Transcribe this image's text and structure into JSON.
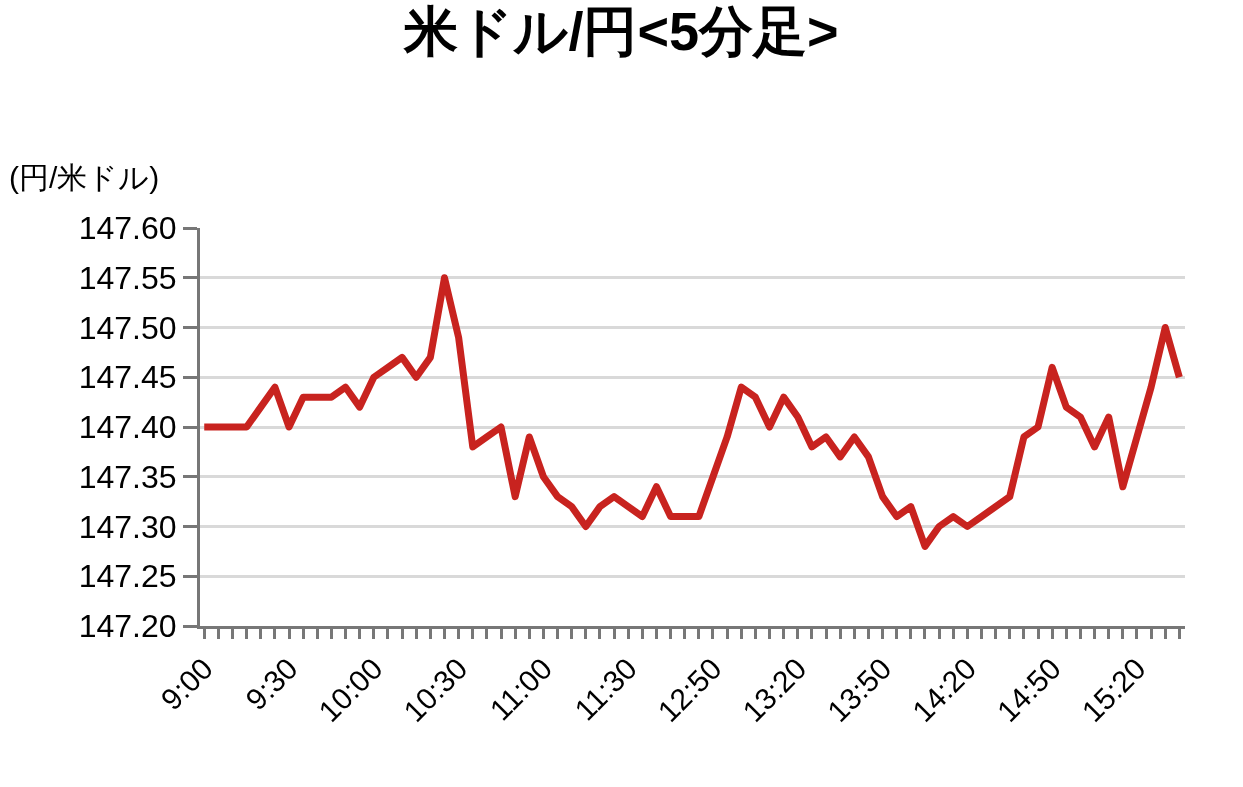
{
  "chart_data": {
    "type": "line",
    "title": "米ドル/円<5分足>",
    "ylabel": "(円/米ドル)",
    "categories": [
      "9:00",
      null,
      null,
      null,
      null,
      null,
      "9:30",
      null,
      null,
      null,
      null,
      null,
      "10:00",
      null,
      null,
      null,
      null,
      null,
      "10:30",
      null,
      null,
      null,
      null,
      null,
      "11:00",
      null,
      null,
      null,
      null,
      null,
      "11:30",
      null,
      null,
      null,
      null,
      null,
      "12:50",
      null,
      null,
      null,
      null,
      null,
      "13:20",
      null,
      null,
      null,
      null,
      null,
      "13:50",
      null,
      null,
      null,
      null,
      null,
      "14:20",
      null,
      null,
      null,
      null,
      null,
      "14:50",
      null,
      null,
      null,
      null,
      null,
      "15:20",
      null,
      null,
      null
    ],
    "series": [
      {
        "color": "#c8231f",
        "values": [
          147.4,
          147.4,
          147.4,
          147.4,
          147.42,
          147.44,
          147.4,
          147.43,
          147.43,
          147.43,
          147.44,
          147.42,
          147.45,
          147.46,
          147.47,
          147.45,
          147.47,
          147.55,
          147.49,
          147.38,
          147.39,
          147.4,
          147.33,
          147.39,
          147.35,
          147.33,
          147.32,
          147.3,
          147.32,
          147.33,
          147.32,
          147.31,
          147.34,
          147.31,
          147.31,
          147.31,
          147.35,
          147.39,
          147.44,
          147.43,
          147.4,
          147.43,
          147.41,
          147.38,
          147.39,
          147.37,
          147.39,
          147.37,
          147.33,
          147.31,
          147.32,
          147.28,
          147.3,
          147.31,
          147.3,
          147.31,
          147.32,
          147.33,
          147.39,
          147.4,
          147.46,
          147.42,
          147.41,
          147.38,
          147.41,
          147.34,
          147.39,
          147.44,
          147.5,
          147.45
        ]
      }
    ],
    "ylim": [
      147.2,
      147.6
    ],
    "yticks": [
      {
        "value": 147.2,
        "label": "147.20"
      },
      {
        "value": 147.25,
        "label": "147.25"
      },
      {
        "value": 147.3,
        "label": "147.30"
      },
      {
        "value": 147.35,
        "label": "147.35"
      },
      {
        "value": 147.4,
        "label": "147.40"
      },
      {
        "value": 147.45,
        "label": "147.45"
      },
      {
        "value": 147.5,
        "label": "147.50"
      },
      {
        "value": 147.55,
        "label": "147.55"
      },
      {
        "value": 147.6,
        "label": "147.60"
      }
    ],
    "grid": "y",
    "marker": "none",
    "line_style": "solid"
  }
}
